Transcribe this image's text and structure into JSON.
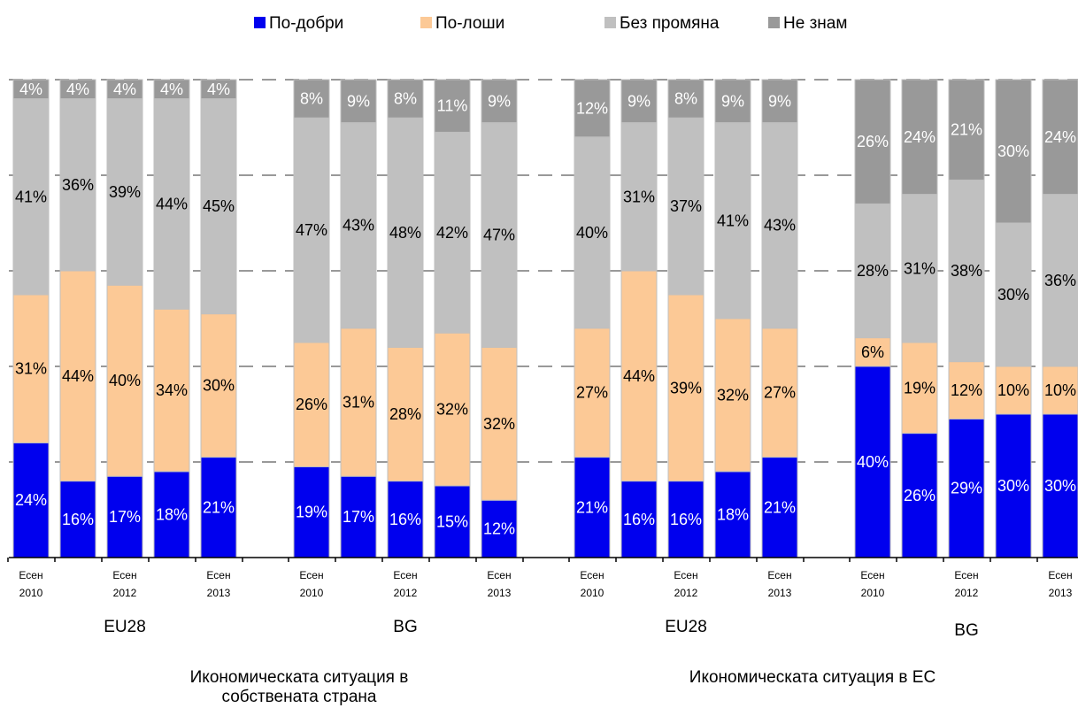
{
  "chart_data": {
    "type": "bar",
    "stacked": true,
    "legend": {
      "placement": "top",
      "entries": [
        {
          "name": "По-добри",
          "color": "#0000ee"
        },
        {
          "name": "По-лоши",
          "color": "#fcc996"
        },
        {
          "name": "Без промяна",
          "color": "#c0c0c0"
        },
        {
          "name": "Не знам",
          "color": "#999999"
        }
      ]
    },
    "series_colors": [
      "#0000ee",
      "#fcc996",
      "#c0c0c0",
      "#999999"
    ],
    "label_colors": [
      "#ffffff",
      "#000000",
      "#000000",
      "#ffffff"
    ],
    "ylim": [
      0,
      100
    ],
    "grid": true,
    "sections": [
      {
        "label": "Икономическата ситуация в собствената страна",
        "label_lines": [
          "Икономическата ситуация в",
          "собствената страна"
        ],
        "groups": [
          {
            "label": "EU28",
            "bars": [
              {
                "values": [
                  24,
                  31,
                  41,
                  4
                ],
                "labels": [
                  "24%",
                  "31%",
                  "41%",
                  "4%"
                ]
              },
              {
                "values": [
                  16,
                  44,
                  36,
                  4
                ],
                "labels": [
                  "16%",
                  "44%",
                  "36%",
                  "4%"
                ]
              },
              {
                "values": [
                  17,
                  40,
                  39,
                  4
                ],
                "labels": [
                  "17%",
                  "40%",
                  "39%",
                  "4%"
                ]
              },
              {
                "values": [
                  18,
                  34,
                  44,
                  4
                ],
                "labels": [
                  "18%",
                  "34%",
                  "44%",
                  "4%"
                ]
              },
              {
                "values": [
                  21,
                  30,
                  45,
                  4
                ],
                "labels": [
                  "21%",
                  "30%",
                  "45%",
                  "4%"
                ]
              }
            ]
          },
          {
            "label": "BG",
            "bars": [
              {
                "values": [
                  19,
                  26,
                  47,
                  8
                ],
                "labels": [
                  "19%",
                  "26%",
                  "47%",
                  "8%"
                ]
              },
              {
                "values": [
                  17,
                  31,
                  43,
                  9
                ],
                "labels": [
                  "17%",
                  "31%",
                  "43%",
                  "9%"
                ]
              },
              {
                "values": [
                  16,
                  28,
                  48,
                  8
                ],
                "labels": [
                  "16%",
                  "28%",
                  "48%",
                  "8%"
                ]
              },
              {
                "values": [
                  15,
                  32,
                  42,
                  11
                ],
                "labels": [
                  "15%",
                  "32%",
                  "42%",
                  "11%"
                ]
              },
              {
                "values": [
                  12,
                  32,
                  47,
                  9
                ],
                "labels": [
                  "12%",
                  "32%",
                  "47%",
                  "9%"
                ]
              }
            ]
          }
        ]
      },
      {
        "label": "Икономическата ситуация в ЕС",
        "label_lines": [
          "Икономическата ситуация в ЕС"
        ],
        "groups": [
          {
            "label": "EU28",
            "bars": [
              {
                "values": [
                  21,
                  27,
                  40,
                  12
                ],
                "labels": [
                  "21%",
                  "27%",
                  "40%",
                  "12%"
                ]
              },
              {
                "values": [
                  16,
                  44,
                  31,
                  9
                ],
                "labels": [
                  "16%",
                  "44%",
                  "31%",
                  "9%"
                ]
              },
              {
                "values": [
                  16,
                  39,
                  37,
                  8
                ],
                "labels": [
                  "16%",
                  "39%",
                  "37%",
                  "8%"
                ]
              },
              {
                "values": [
                  18,
                  32,
                  41,
                  9
                ],
                "labels": [
                  "18%",
                  "32%",
                  "41%",
                  "9%"
                ]
              },
              {
                "values": [
                  21,
                  27,
                  43,
                  9
                ],
                "labels": [
                  "21%",
                  "27%",
                  "43%",
                  "9%"
                ]
              }
            ]
          },
          {
            "label": "BG",
            "bars": [
              {
                "values": [
                  40,
                  6,
                  28,
                  26
                ],
                "labels": [
                  "40%",
                  "6%",
                  "28%",
                  "26%"
                ]
              },
              {
                "values": [
                  26,
                  19,
                  31,
                  24
                ],
                "labels": [
                  "26%",
                  "19%",
                  "31%",
                  "24%"
                ]
              },
              {
                "values": [
                  29,
                  12,
                  38,
                  21
                ],
                "labels": [
                  "29%",
                  "12%",
                  "38%",
                  "21%"
                ]
              },
              {
                "values": [
                  30,
                  10,
                  30,
                  30
                ],
                "labels": [
                  "30%",
                  "10%",
                  "30%",
                  "30%"
                ]
              },
              {
                "values": [
                  30,
                  10,
                  36,
                  24
                ],
                "labels": [
                  "30%",
                  "10%",
                  "36%",
                  "24%"
                ]
              }
            ]
          }
        ]
      }
    ],
    "tick_labels": [
      {
        "group": 0,
        "bar": 0,
        "lines": [
          "Есен",
          "2010"
        ]
      },
      {
        "group": 0,
        "bar": 2,
        "lines": [
          "Есен",
          "2012"
        ]
      },
      {
        "group": 0,
        "bar": 4,
        "lines": [
          "Есен",
          "2013"
        ]
      },
      {
        "group": 1,
        "bar": 0,
        "lines": [
          "Есен",
          "2010"
        ]
      },
      {
        "group": 1,
        "bar": 2,
        "lines": [
          "Есен",
          "2012"
        ]
      },
      {
        "group": 1,
        "bar": 4,
        "lines": [
          "Есен",
          "2013"
        ]
      },
      {
        "group": 2,
        "bar": 0,
        "lines": [
          "Есен",
          "2010"
        ]
      },
      {
        "group": 2,
        "bar": 2,
        "lines": [
          "Есен",
          "2012"
        ]
      },
      {
        "group": 2,
        "bar": 4,
        "lines": [
          "Есен",
          "2013"
        ]
      },
      {
        "group": 3,
        "bar": 0,
        "lines": [
          "Есен",
          "2010"
        ]
      },
      {
        "group": 3,
        "bar": 2,
        "lines": [
          "Есен",
          "2012"
        ]
      },
      {
        "group": 3,
        "bar": 4,
        "lines": [
          "Есен",
          "2013"
        ]
      }
    ]
  }
}
